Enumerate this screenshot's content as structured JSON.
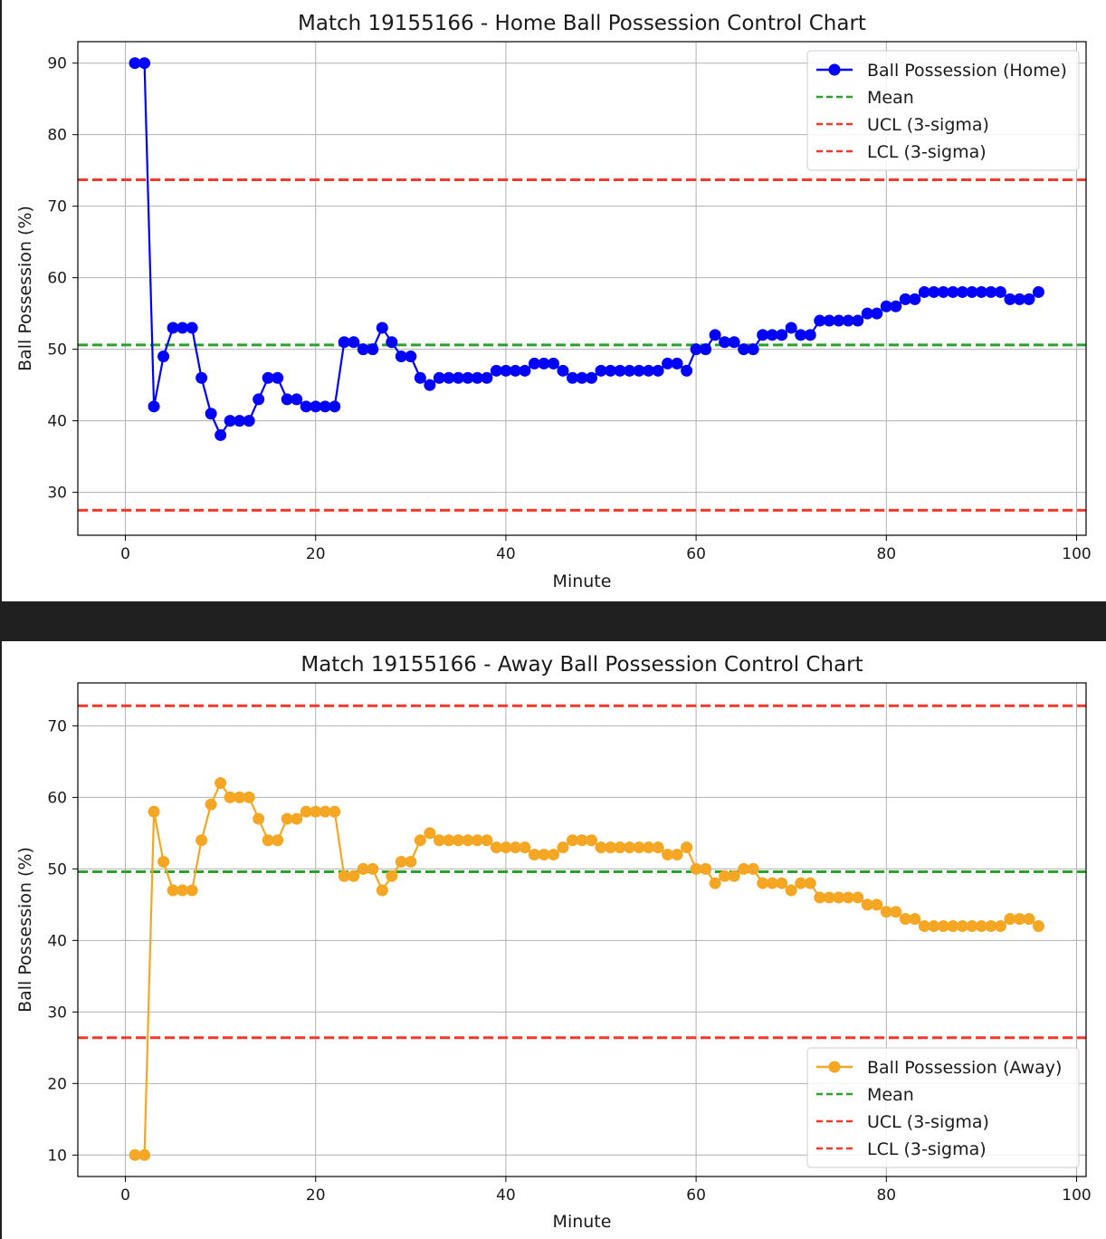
{
  "chart_data": [
    {
      "type": "line",
      "title": "Match 19155166 - Home Ball Possession Control Chart",
      "xlabel": "Minute",
      "ylabel": "Ball Possession (%)",
      "xlim": [
        -5,
        101
      ],
      "ylim": [
        24,
        93
      ],
      "xticks": [
        0,
        20,
        40,
        60,
        80,
        100
      ],
      "yticks": [
        30,
        40,
        50,
        60,
        70,
        80,
        90
      ],
      "grid": true,
      "legend_position": "upper right",
      "series": [
        {
          "name": "Ball Possession (Home)",
          "color": "#0000ff",
          "marker": "circle",
          "x": [
            1,
            2,
            3,
            4,
            5,
            6,
            7,
            8,
            9,
            10,
            11,
            12,
            13,
            14,
            15,
            16,
            17,
            18,
            19,
            20,
            21,
            22,
            23,
            24,
            25,
            26,
            27,
            28,
            29,
            30,
            31,
            32,
            33,
            34,
            35,
            36,
            37,
            38,
            39,
            40,
            41,
            42,
            43,
            44,
            45,
            46,
            47,
            48,
            49,
            50,
            51,
            52,
            53,
            54,
            55,
            56,
            57,
            58,
            59,
            60,
            61,
            62,
            63,
            64,
            65,
            66,
            67,
            68,
            69,
            70,
            71,
            72,
            73,
            74,
            75,
            76,
            77,
            78,
            79,
            80,
            81,
            82,
            83,
            84,
            85,
            86,
            87,
            88,
            89,
            90,
            91,
            92,
            93,
            94,
            95,
            96
          ],
          "values": [
            90,
            90,
            42,
            49,
            53,
            53,
            53,
            46,
            41,
            38,
            40,
            40,
            40,
            43,
            46,
            46,
            43,
            43,
            42,
            42,
            42,
            42,
            51,
            51,
            50,
            50,
            53,
            51,
            49,
            49,
            46,
            45,
            46,
            46,
            46,
            46,
            46,
            46,
            47,
            47,
            47,
            47,
            48,
            48,
            48,
            47,
            46,
            46,
            46,
            47,
            47,
            47,
            47,
            47,
            47,
            47,
            48,
            48,
            47,
            50,
            50,
            52,
            51,
            51,
            50,
            50,
            52,
            52,
            52,
            53,
            52,
            52,
            54,
            54,
            54,
            54,
            54,
            55,
            55,
            56,
            56,
            57,
            57,
            58,
            58,
            58,
            58,
            58,
            58,
            58,
            58,
            58,
            57,
            57,
            57,
            58
          ]
        },
        {
          "name": "Mean",
          "color": "#2ca02c",
          "style": "dashed",
          "value": 50.6
        },
        {
          "name": "UCL (3-sigma)",
          "color": "#ef3b2c",
          "style": "dashed",
          "value": 73.7
        },
        {
          "name": "LCL (3-sigma)",
          "color": "#ef3b2c",
          "style": "dashed",
          "value": 27.5
        }
      ]
    },
    {
      "type": "line",
      "title": "Match 19155166 - Away Ball Possession Control Chart",
      "xlabel": "Minute",
      "ylabel": "Ball Possession (%)",
      "xlim": [
        -5,
        101
      ],
      "ylim": [
        7,
        76
      ],
      "xticks": [
        0,
        20,
        40,
        60,
        80,
        100
      ],
      "yticks": [
        10,
        20,
        30,
        40,
        50,
        60,
        70
      ],
      "grid": true,
      "legend_position": "lower right",
      "series": [
        {
          "name": "Ball Possession (Away)",
          "color": "#f5a623",
          "marker": "circle",
          "x": [
            1,
            2,
            3,
            4,
            5,
            6,
            7,
            8,
            9,
            10,
            11,
            12,
            13,
            14,
            15,
            16,
            17,
            18,
            19,
            20,
            21,
            22,
            23,
            24,
            25,
            26,
            27,
            28,
            29,
            30,
            31,
            32,
            33,
            34,
            35,
            36,
            37,
            38,
            39,
            40,
            41,
            42,
            43,
            44,
            45,
            46,
            47,
            48,
            49,
            50,
            51,
            52,
            53,
            54,
            55,
            56,
            57,
            58,
            59,
            60,
            61,
            62,
            63,
            64,
            65,
            66,
            67,
            68,
            69,
            70,
            71,
            72,
            73,
            74,
            75,
            76,
            77,
            78,
            79,
            80,
            81,
            82,
            83,
            84,
            85,
            86,
            87,
            88,
            89,
            90,
            91,
            92,
            93,
            94,
            95,
            96
          ],
          "values": [
            10,
            10,
            58,
            51,
            47,
            47,
            47,
            54,
            59,
            62,
            60,
            60,
            60,
            57,
            54,
            54,
            57,
            57,
            58,
            58,
            58,
            58,
            49,
            49,
            50,
            50,
            47,
            49,
            51,
            51,
            54,
            55,
            54,
            54,
            54,
            54,
            54,
            54,
            53,
            53,
            53,
            53,
            52,
            52,
            52,
            53,
            54,
            54,
            54,
            53,
            53,
            53,
            53,
            53,
            53,
            53,
            52,
            52,
            53,
            50,
            50,
            48,
            49,
            49,
            50,
            50,
            48,
            48,
            48,
            47,
            48,
            48,
            46,
            46,
            46,
            46,
            46,
            45,
            45,
            44,
            44,
            43,
            43,
            42,
            42,
            42,
            42,
            42,
            42,
            42,
            42,
            42,
            43,
            43,
            43,
            42
          ]
        },
        {
          "name": "Mean",
          "color": "#2ca02c",
          "style": "dashed",
          "value": 49.6
        },
        {
          "name": "UCL (3-sigma)",
          "color": "#ef3b2c",
          "style": "dashed",
          "value": 72.8
        },
        {
          "name": "LCL (3-sigma)",
          "color": "#ef3b2c",
          "style": "dashed",
          "value": 26.4
        }
      ]
    }
  ]
}
